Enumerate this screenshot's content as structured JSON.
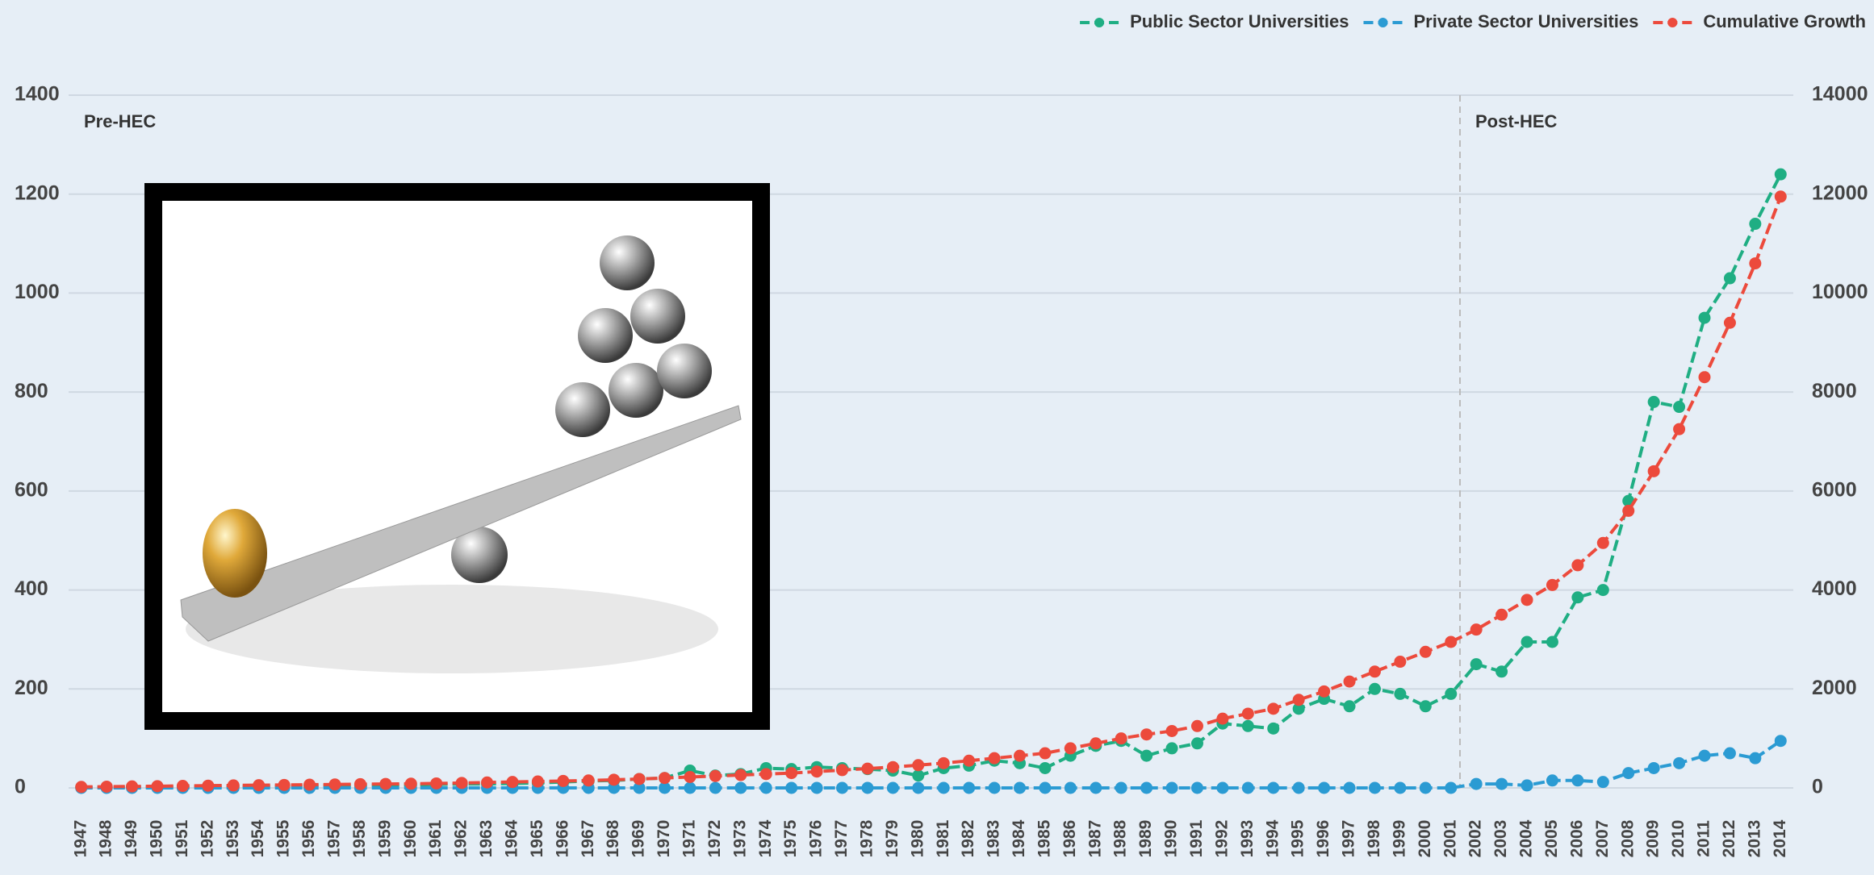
{
  "chart_data": {
    "type": "line",
    "categories": [
      "1947",
      "1948",
      "1949",
      "1950",
      "1951",
      "1952",
      "1953",
      "1954",
      "1955",
      "1956",
      "1957",
      "1958",
      "1959",
      "1960",
      "1961",
      "1962",
      "1963",
      "1964",
      "1965",
      "1966",
      "1967",
      "1968",
      "1969",
      "1970",
      "1971",
      "1972",
      "1973",
      "1974",
      "1975",
      "1976",
      "1977",
      "1978",
      "1979",
      "1980",
      "1981",
      "1982",
      "1983",
      "1984",
      "1985",
      "1986",
      "1987",
      "1988",
      "1989",
      "1990",
      "1991",
      "1992",
      "1993",
      "1994",
      "1995",
      "1996",
      "1997",
      "1998",
      "1999",
      "2000",
      "2001",
      "2002",
      "2003",
      "2004",
      "2005",
      "2006",
      "2007",
      "2008",
      "2009",
      "2010",
      "2011",
      "2012",
      "2013",
      "2014"
    ],
    "series": [
      {
        "name": "Public Sector Universities",
        "color": "#1fae83",
        "values": [
          1,
          1,
          2,
          2,
          2,
          3,
          3,
          3,
          4,
          4,
          5,
          5,
          6,
          6,
          7,
          8,
          8,
          9,
          10,
          12,
          14,
          15,
          18,
          20,
          35,
          25,
          28,
          40,
          38,
          42,
          40,
          38,
          35,
          25,
          40,
          45,
          55,
          50,
          40,
          65,
          85,
          95,
          65,
          80,
          90,
          130,
          125,
          120,
          160,
          180,
          165,
          200,
          190,
          165,
          190,
          250,
          235,
          295,
          295,
          385,
          400,
          580,
          780,
          770,
          950,
          1030,
          1140,
          1240
        ]
      },
      {
        "name": "Private Sector Universities",
        "color": "#2b9bd3",
        "values": [
          0,
          0,
          0,
          0,
          0,
          0,
          0,
          0,
          0,
          0,
          0,
          0,
          0,
          0,
          0,
          0,
          0,
          0,
          0,
          0,
          0,
          0,
          0,
          0,
          0,
          0,
          0,
          0,
          0,
          0,
          0,
          0,
          0,
          0,
          0,
          0,
          0,
          0,
          0,
          0,
          0,
          0,
          0,
          0,
          0,
          0,
          0,
          0,
          0,
          0,
          0,
          0,
          0,
          0,
          0,
          8,
          8,
          5,
          15,
          15,
          12,
          30,
          40,
          50,
          65,
          70,
          60,
          95
        ]
      },
      {
        "name": "Cumulative Growth",
        "color": "#ec4a3c",
        "axis": "y2",
        "values": [
          20,
          25,
          30,
          35,
          40,
          45,
          50,
          55,
          60,
          65,
          70,
          75,
          80,
          85,
          90,
          100,
          110,
          120,
          130,
          140,
          150,
          165,
          180,
          200,
          220,
          240,
          260,
          280,
          300,
          330,
          360,
          390,
          420,
          460,
          500,
          550,
          600,
          650,
          700,
          800,
          900,
          1000,
          1080,
          1150,
          1250,
          1400,
          1500,
          1600,
          1780,
          1950,
          2150,
          2350,
          2550,
          2750,
          2950,
          3200,
          3500,
          3800,
          4100,
          4500,
          4950,
          5600,
          6400,
          7250,
          8300,
          9400,
          10600,
          11950
        ]
      }
    ],
    "ylim": [
      0,
      1400
    ],
    "yticks": [
      0,
      200,
      400,
      600,
      800,
      1000,
      1200,
      1400
    ],
    "y2lim": [
      0,
      14000
    ],
    "y2ticks": [
      0,
      2000,
      4000,
      6000,
      8000,
      10000,
      12000,
      14000
    ],
    "annotations": [
      "Pre-HEC",
      "Post-HEC"
    ],
    "grid": true,
    "legend": "top-right"
  }
}
